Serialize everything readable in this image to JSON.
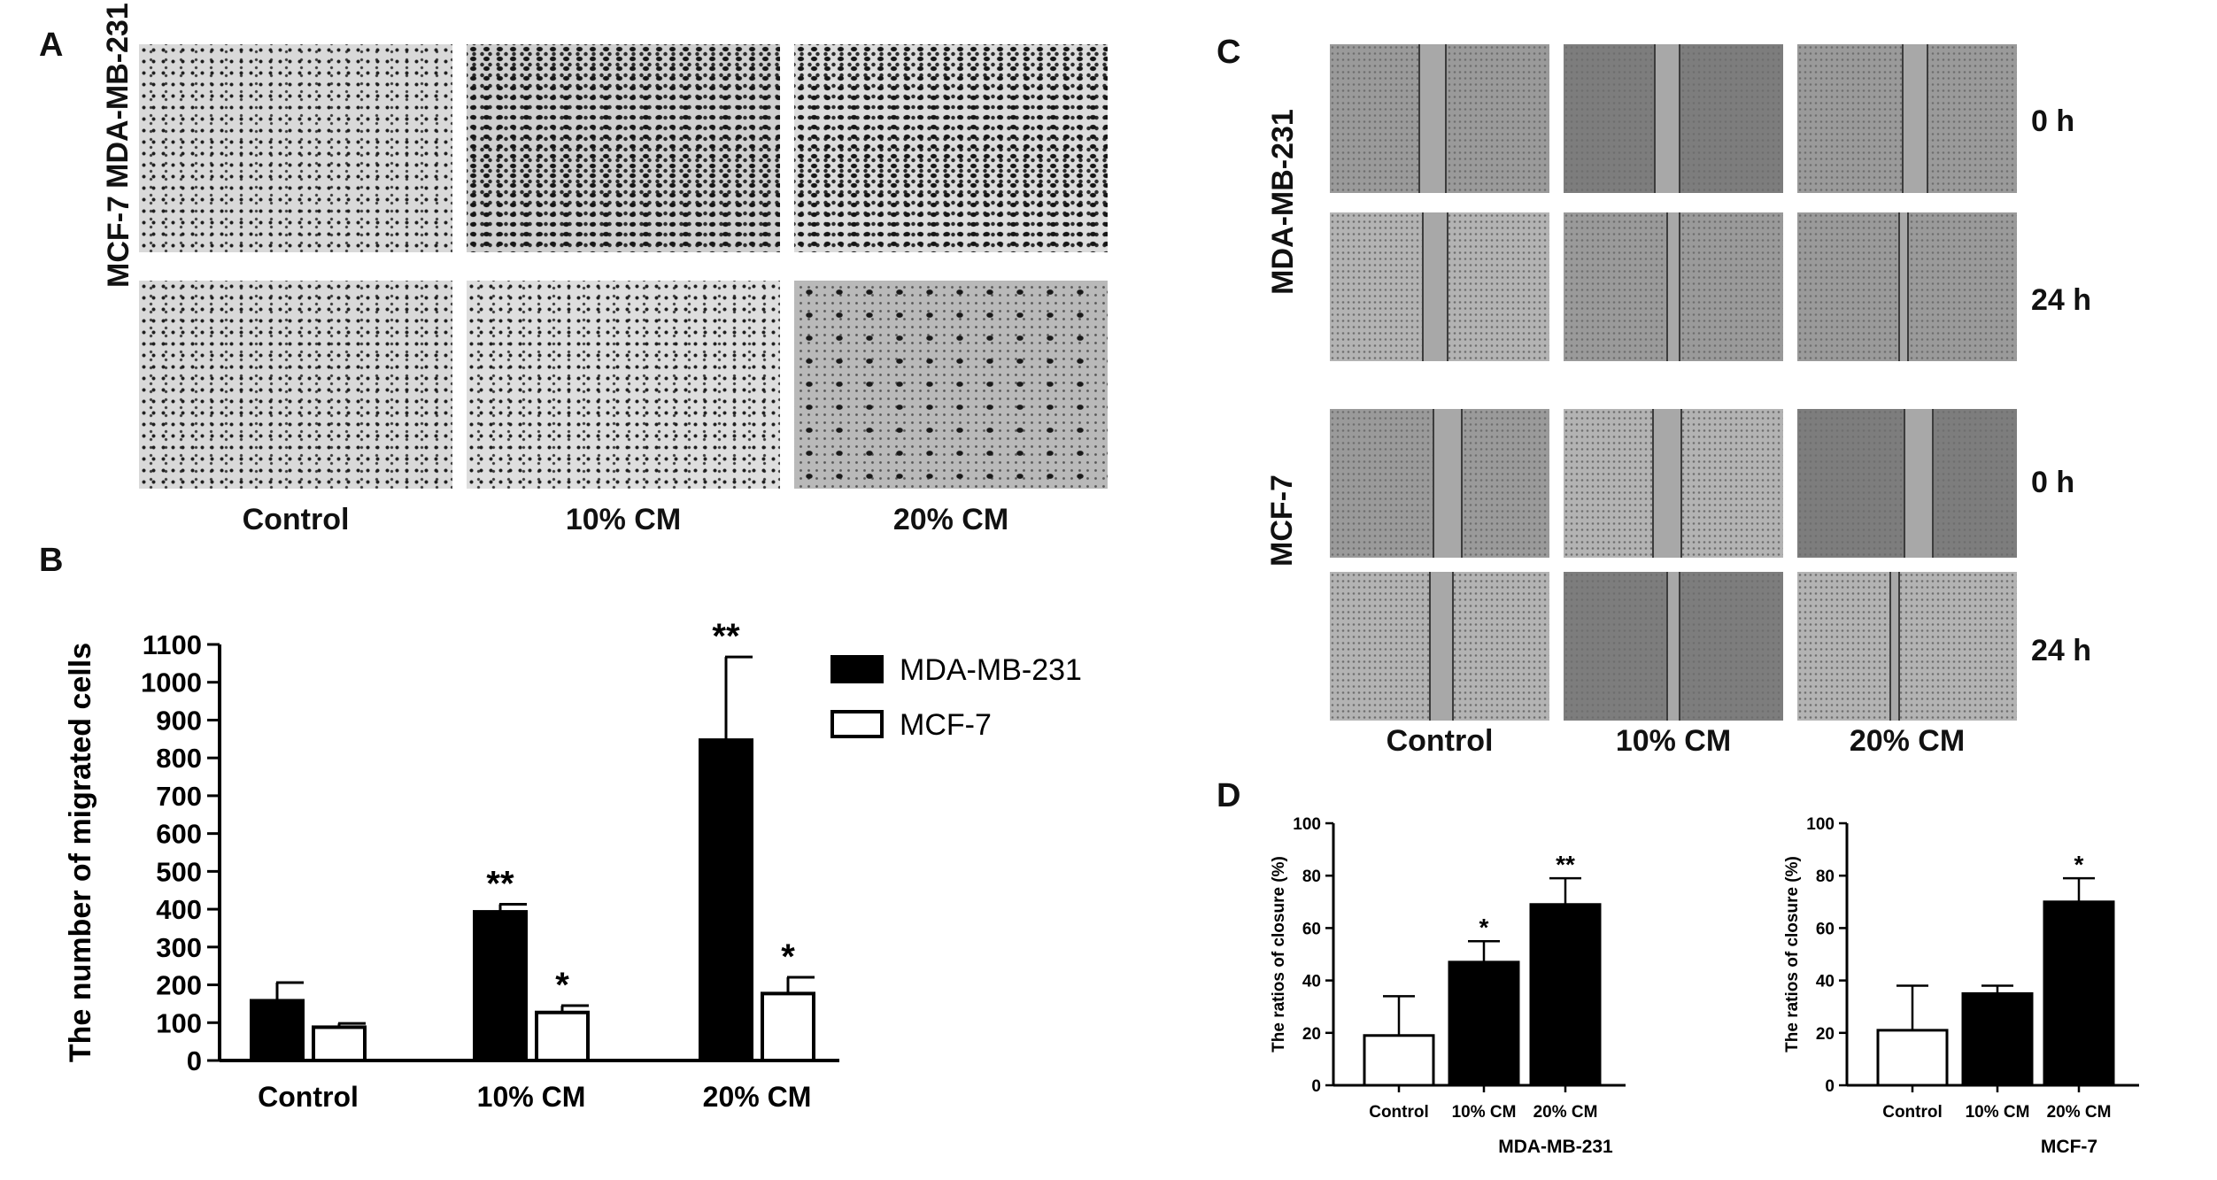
{
  "panels": {
    "A": {
      "letter": "A",
      "row_labels": [
        "MDA-MB-231",
        "MCF-7"
      ],
      "col_labels": [
        "Control",
        "10% CM",
        "20% CM"
      ]
    },
    "C": {
      "letter": "C",
      "row_labels": [
        "MDA-MB-231",
        "MCF-7"
      ],
      "time_labels": [
        "0 h",
        "24 h",
        "0 h",
        "24 h"
      ],
      "col_labels": [
        "Control",
        "10% CM",
        "20% CM"
      ]
    },
    "B": {
      "letter": "B"
    },
    "D": {
      "letter": "D"
    }
  },
  "colors": {
    "black_bar": "#000000",
    "white_bar": "#ffffff",
    "axis": "#000000"
  },
  "chart_data": [
    {
      "id": "B",
      "type": "bar",
      "categories": [
        "Control",
        "10% CM",
        "20% CM"
      ],
      "series": [
        {
          "name": "MDA-MB-231",
          "values": [
            158,
            393,
            847
          ],
          "errors": [
            48,
            20,
            220
          ],
          "fill": "#000000",
          "significance": [
            "",
            "**",
            "**"
          ]
        },
        {
          "name": "MCF-7",
          "values": [
            88,
            127,
            177
          ],
          "errors": [
            10,
            18,
            43
          ],
          "fill": "#ffffff",
          "significance": [
            "",
            "*",
            "*"
          ]
        }
      ],
      "xlabel": "",
      "ylabel": "The number of migrated cells",
      "ylim": [
        0,
        1100
      ],
      "yticks": [
        "0",
        "100",
        "200",
        "300",
        "400",
        "500",
        "600",
        "700",
        "800",
        "900",
        "1000",
        "1100"
      ],
      "legend": "right",
      "grid": false
    },
    {
      "id": "D1",
      "type": "bar",
      "categories": [
        "Control",
        "10% CM",
        "20% CM"
      ],
      "values": [
        19,
        47,
        69
      ],
      "errors": [
        15,
        8,
        10
      ],
      "fills": [
        "#ffffff",
        "#000000",
        "#000000"
      ],
      "significance": [
        "",
        "*",
        "**"
      ],
      "xlabel": "MDA-MB-231",
      "ylabel": "The ratios of closure (%)",
      "ylim": [
        0,
        100
      ],
      "yticks": [
        "0",
        "20",
        "40",
        "60",
        "80",
        "100"
      ],
      "grid": false
    },
    {
      "id": "D2",
      "type": "bar",
      "categories": [
        "Control",
        "10% CM",
        "20% CM"
      ],
      "values": [
        21,
        35,
        70
      ],
      "errors": [
        17,
        3,
        9
      ],
      "fills": [
        "#ffffff",
        "#000000",
        "#000000"
      ],
      "significance": [
        "",
        "",
        "*"
      ],
      "xlabel": "MCF-7",
      "ylabel": "The ratios of closure (%)",
      "ylim": [
        0,
        100
      ],
      "yticks": [
        "0",
        "20",
        "40",
        "60",
        "80",
        "100"
      ],
      "grid": false
    }
  ]
}
